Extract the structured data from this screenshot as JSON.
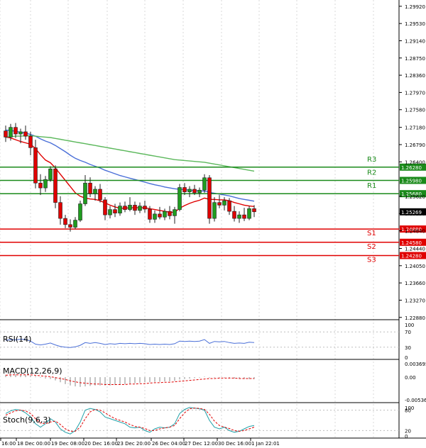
{
  "chart_data": [
    {
      "type": "candlestick",
      "panel": "main",
      "y_ticks": [
        1.2992,
        1.2953,
        1.2914,
        1.2875,
        1.2836,
        1.2797,
        1.2758,
        1.2718,
        1.2679,
        1.264,
        1.2562,
        1.2523,
        1.2484,
        1.2444,
        1.2405,
        1.2366,
        1.2327,
        1.2288
      ],
      "y_tick_labels": [
        "1.29920",
        "1.29530",
        "1.29140",
        "1.28750",
        "1.28360",
        "1.27970",
        "1.27580",
        "1.27180",
        "1.26790",
        "1.26400",
        "1.25620",
        "1.25230",
        "1.24840",
        "1.24440",
        "1.24050",
        "1.23660",
        "1.23270",
        "1.22880"
      ],
      "ylim": [
        1.2286,
        1.3003
      ],
      "x_tick_labels": [
        "16:00",
        "18 Dec 00:00",
        "19 Dec 08:00",
        "20 Dec 16:00",
        "23 Dec 20:00",
        "26 Dec 04:00",
        "27 Dec 12:00",
        "30 Dec 16:00",
        "1 Jan 22:01"
      ],
      "current_price": 1.25269,
      "current_price_label": "1.25269",
      "levels": [
        {
          "name": "R3",
          "value": 1.2628,
          "label": "1.26280",
          "color": "#1a8a1a"
        },
        {
          "name": "R2",
          "value": 1.2598,
          "label": "1.25980",
          "color": "#1a8a1a"
        },
        {
          "name": "R1",
          "value": 1.2568,
          "label": "1.25680",
          "color": "#1a8a1a"
        },
        {
          "name": "S1",
          "value": 1.2488,
          "label": "1.24880",
          "color": "#e00000"
        },
        {
          "name": "S2",
          "value": 1.2458,
          "label": "1.24580",
          "color": "#e00000"
        },
        {
          "name": "S3",
          "value": 1.2428,
          "label": "1.24280",
          "color": "#e00000"
        }
      ],
      "candles": [
        [
          1.271,
          1.2722,
          1.2685,
          1.2696
        ],
        [
          1.2696,
          1.2726,
          1.2688,
          1.2718
        ],
        [
          1.2718,
          1.2728,
          1.2694,
          1.2703
        ],
        [
          1.2703,
          1.2715,
          1.2682,
          1.2708
        ],
        [
          1.2708,
          1.2722,
          1.269,
          1.2698
        ],
        [
          1.2698,
          1.2708,
          1.2655,
          1.2672
        ],
        [
          1.2672,
          1.269,
          1.258,
          1.2592
        ],
        [
          1.2592,
          1.2612,
          1.2565,
          1.2581
        ],
        [
          1.2581,
          1.2608,
          1.2572,
          1.26
        ],
        [
          1.26,
          1.263,
          1.2595,
          1.2624
        ],
        [
          1.2624,
          1.2632,
          1.2535,
          1.2548
        ],
        [
          1.2548,
          1.2562,
          1.2498,
          1.2512
        ],
        [
          1.2512,
          1.252,
          1.249,
          1.2498
        ],
        [
          1.2498,
          1.251,
          1.2482,
          1.2492
        ],
        [
          1.2492,
          1.2515,
          1.2488,
          1.2508
        ],
        [
          1.2508,
          1.2552,
          1.2504,
          1.2545
        ],
        [
          1.2545,
          1.261,
          1.254,
          1.2592
        ],
        [
          1.2592,
          1.2605,
          1.256,
          1.2568
        ],
        [
          1.2568,
          1.2585,
          1.2552,
          1.2578
        ],
        [
          1.2578,
          1.259,
          1.2548,
          1.2554
        ],
        [
          1.2554,
          1.256,
          1.2508,
          1.252
        ],
        [
          1.252,
          1.254,
          1.2512,
          1.2532
        ],
        [
          1.2532,
          1.2545,
          1.2515,
          1.2524
        ],
        [
          1.2524,
          1.2548,
          1.2518,
          1.254
        ],
        [
          1.254,
          1.255,
          1.2526,
          1.2532
        ],
        [
          1.2532,
          1.256,
          1.2528,
          1.2542
        ],
        [
          1.2542,
          1.255,
          1.252,
          1.253
        ],
        [
          1.253,
          1.2548,
          1.2524,
          1.254
        ],
        [
          1.254,
          1.2552,
          1.2525,
          1.2533
        ],
        [
          1.2533,
          1.254,
          1.2502,
          1.251
        ],
        [
          1.251,
          1.253,
          1.2502,
          1.2522
        ],
        [
          1.2522,
          1.2538,
          1.251,
          1.2515
        ],
        [
          1.2515,
          1.2534,
          1.2508,
          1.2528
        ],
        [
          1.2528,
          1.254,
          1.251,
          1.2518
        ],
        [
          1.2518,
          1.2538,
          1.25,
          1.2532
        ],
        [
          1.2532,
          1.259,
          1.2528,
          1.2582
        ],
        [
          1.2582,
          1.2592,
          1.2565,
          1.2572
        ],
        [
          1.2572,
          1.2585,
          1.256,
          1.2578
        ],
        [
          1.2578,
          1.2588,
          1.2565,
          1.257
        ],
        [
          1.257,
          1.2582,
          1.256,
          1.2576
        ],
        [
          1.2576,
          1.2612,
          1.257,
          1.2604
        ],
        [
          1.2604,
          1.261,
          1.25,
          1.2512
        ],
        [
          1.2512,
          1.256,
          1.2505,
          1.2548
        ],
        [
          1.2548,
          1.2565,
          1.2535,
          1.2542
        ],
        [
          1.2542,
          1.256,
          1.253,
          1.2552
        ],
        [
          1.2552,
          1.2558,
          1.252,
          1.2528
        ],
        [
          1.2528,
          1.254,
          1.2505,
          1.2512
        ],
        [
          1.2512,
          1.2528,
          1.2502,
          1.252
        ],
        [
          1.252,
          1.2536,
          1.2506,
          1.2512
        ],
        [
          1.2512,
          1.254,
          1.2508,
          1.2534
        ],
        [
          1.2534,
          1.2542,
          1.2515,
          1.2527
        ]
      ],
      "overlays": [
        {
          "color": "#e00000",
          "values": [
            1.2696,
            1.2694,
            1.269,
            1.2686,
            1.2683,
            1.268,
            1.267,
            1.2656,
            1.2644,
            1.2638,
            1.2626,
            1.2612,
            1.2598,
            1.2584,
            1.257,
            1.2562,
            1.2558,
            1.2556,
            1.2555,
            1.2552,
            1.2547,
            1.2542,
            1.2538,
            1.2535,
            1.2535,
            1.2536,
            1.2536,
            1.2536,
            1.2536,
            1.2534,
            1.2532,
            1.253,
            1.2528,
            1.2526,
            1.2526,
            1.2535,
            1.2541,
            1.2546,
            1.255,
            1.2553,
            1.2558,
            1.2555,
            1.2555,
            1.2554,
            1.2554,
            1.2552,
            1.2548,
            1.2545,
            1.2542,
            1.254,
            1.2539
          ]
        },
        {
          "color": "#4a6fd8",
          "values": [
            1.2712,
            1.2711,
            1.2709,
            1.2707,
            1.2705,
            1.2702,
            1.2698,
            1.2692,
            1.2687,
            1.2683,
            1.2677,
            1.267,
            1.2663,
            1.2655,
            1.2648,
            1.2643,
            1.2639,
            1.2634,
            1.263,
            1.2626,
            1.2621,
            1.2617,
            1.2613,
            1.2609,
            1.2606,
            1.2603,
            1.26,
            1.2597,
            1.2594,
            1.2591,
            1.2588,
            1.2586,
            1.2583,
            1.2581,
            1.2579,
            1.2578,
            1.2577,
            1.2576,
            1.2575,
            1.2574,
            1.2574,
            1.2571,
            1.2569,
            1.2567,
            1.2565,
            1.2563,
            1.256,
            1.2557,
            1.2555,
            1.2553,
            1.2551
          ]
        },
        {
          "color": "#5cb85c",
          "values": [
            1.2696,
            1.2697,
            1.2698,
            1.2698,
            1.2699,
            1.2699,
            1.2698,
            1.2697,
            1.2696,
            1.2695,
            1.2693,
            1.2691,
            1.2689,
            1.2687,
            1.2685,
            1.2683,
            1.2681,
            1.2679,
            1.2677,
            1.2675,
            1.2673,
            1.2671,
            1.2669,
            1.2667,
            1.2665,
            1.2663,
            1.2661,
            1.2659,
            1.2657,
            1.2655,
            1.2653,
            1.2651,
            1.2649,
            1.2647,
            1.2645,
            1.2644,
            1.2643,
            1.2642,
            1.2641,
            1.264,
            1.2639,
            1.2637,
            1.2635,
            1.2633,
            1.2631,
            1.2629,
            1.2627,
            1.2625,
            1.2623,
            1.2621,
            1.2619
          ]
        }
      ]
    },
    {
      "type": "line",
      "panel": "rsi",
      "title": "RSI(14)",
      "ylim": [
        0,
        100
      ],
      "y_ticks": [
        100,
        70,
        30,
        0
      ],
      "y_tick_labels": [
        "100",
        "70",
        "30",
        "0"
      ],
      "series": [
        {
          "color": "#4a6fd8",
          "values": [
            48,
            50,
            49,
            51,
            50,
            46,
            38,
            36,
            38,
            41,
            36,
            32,
            30,
            29,
            31,
            35,
            42,
            40,
            42,
            40,
            37,
            39,
            38,
            40,
            39,
            40,
            39,
            40,
            39,
            37,
            38,
            37,
            38,
            37,
            39,
            46,
            45,
            46,
            45,
            46,
            50,
            40,
            45,
            44,
            45,
            42,
            40,
            41,
            40,
            43,
            42
          ]
        }
      ]
    },
    {
      "type": "bar",
      "panel": "macd",
      "title": "MACD(12,26,9)",
      "ylim": [
        -0.00536,
        0.00369
      ],
      "y_ticks": [
        0.003695,
        0.0,
        -0.005364
      ],
      "y_tick_labels": [
        "0.003695",
        "0.00",
        "-0.005364"
      ],
      "values": [
        0.0005,
        0.0006,
        0.0006,
        0.0005,
        0.0005,
        0.0004,
        0.0002,
        -0.0001,
        -0.0003,
        -0.0004,
        -0.0007,
        -0.0011,
        -0.0015,
        -0.0018,
        -0.002,
        -0.0021,
        -0.002,
        -0.0019,
        -0.0018,
        -0.0018,
        -0.0018,
        -0.0018,
        -0.0017,
        -0.0016,
        -0.0015,
        -0.0014,
        -0.0013,
        -0.0012,
        -0.0011,
        -0.0011,
        -0.001,
        -0.001,
        -0.0009,
        -0.0009,
        -0.0008,
        -0.0005,
        -0.0004,
        -0.0003,
        -0.0002,
        -0.0001,
        0.0001,
        -0.0001,
        -0.0001,
        -0.0001,
        -0.0001,
        -0.0002,
        -0.0003,
        -0.0003,
        -0.0004,
        -0.0004,
        -0.0004
      ],
      "signal": [
        0.0004,
        0.0005,
        0.0005,
        0.0005,
        0.0005,
        0.0005,
        0.0004,
        0.0003,
        0.0002,
        0.0001,
        -0.0001,
        -0.0003,
        -0.0005,
        -0.0008,
        -0.001,
        -0.0012,
        -0.0013,
        -0.0014,
        -0.0015,
        -0.0015,
        -0.0016,
        -0.0016,
        -0.0016,
        -0.0016,
        -0.0016,
        -0.0015,
        -0.0015,
        -0.0014,
        -0.0014,
        -0.0013,
        -0.0012,
        -0.0012,
        -0.0011,
        -0.0011,
        -0.001,
        -0.0009,
        -0.0008,
        -0.0007,
        -0.0006,
        -0.0005,
        -0.0004,
        -0.0003,
        -0.0003,
        -0.0002,
        -0.0002,
        -0.0002,
        -0.0002,
        -0.0003,
        -0.0003,
        -0.0003,
        -0.0003
      ],
      "signal_color": "#e00000",
      "bar_color": "#b0b0b0"
    },
    {
      "type": "line",
      "panel": "stoch",
      "title": "Stoch(9,6,3)",
      "ylim": [
        0,
        100
      ],
      "y_ticks": [
        100,
        80,
        20,
        0
      ],
      "y_tick_labels": [
        "100",
        "80",
        "20",
        "0"
      ],
      "series": [
        {
          "color": "#20a0a8",
          "values": [
            70,
            78,
            82,
            80,
            72,
            60,
            40,
            30,
            40,
            55,
            45,
            25,
            15,
            10,
            20,
            45,
            80,
            85,
            82,
            75,
            60,
            55,
            50,
            45,
            40,
            30,
            28,
            30,
            20,
            15,
            25,
            30,
            28,
            30,
            40,
            70,
            82,
            88,
            86,
            84,
            80,
            50,
            30,
            25,
            30,
            20,
            15,
            18,
            25,
            32,
            35
          ]
        },
        {
          "color": "#e00000",
          "values": [
            65,
            72,
            78,
            80,
            78,
            70,
            55,
            42,
            40,
            45,
            48,
            38,
            25,
            18,
            18,
            30,
            55,
            75,
            82,
            80,
            72,
            63,
            55,
            50,
            45,
            38,
            32,
            30,
            26,
            20,
            20,
            25,
            28,
            30,
            35,
            55,
            72,
            84,
            86,
            85,
            82,
            68,
            48,
            35,
            30,
            26,
            20,
            18,
            20,
            25,
            30
          ]
        }
      ]
    }
  ]
}
